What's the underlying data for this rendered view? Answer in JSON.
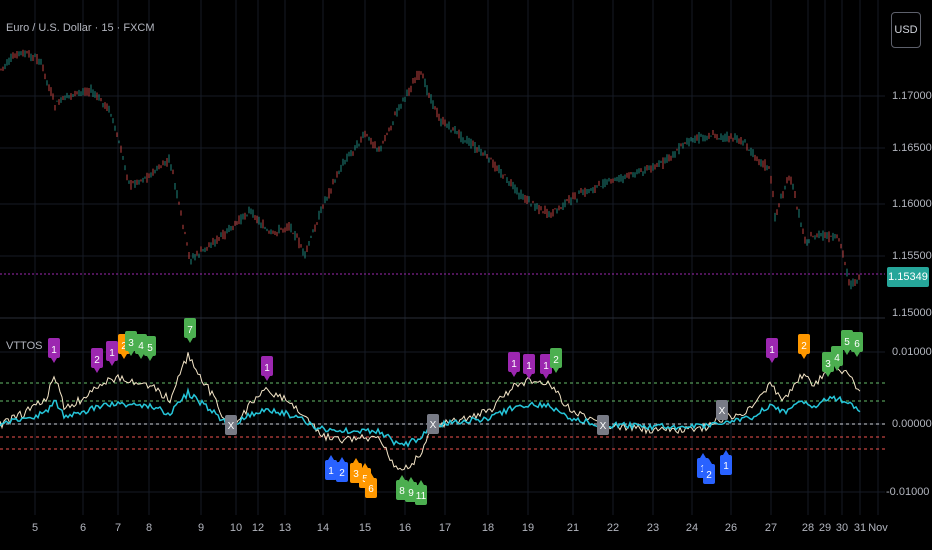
{
  "header": {
    "symbol_title": "Euro / U.S. Dollar · 15 · FXCM"
  },
  "currency_button": {
    "label": "USD"
  },
  "price_axis": {
    "labels": [
      "1.17000",
      "1.16500",
      "1.16000",
      "1.15500",
      "1.15000"
    ],
    "current_price": "1.15349"
  },
  "indicator": {
    "name": "VTTOS",
    "axis_labels": [
      "0.01000",
      "0.00000",
      "-0.01000"
    ]
  },
  "time_axis": {
    "labels": [
      "5",
      "6",
      "7",
      "8",
      "9",
      "10",
      "12",
      "13",
      "14",
      "15",
      "16",
      "17",
      "18",
      "19",
      "21",
      "22",
      "23",
      "24",
      "26",
      "27",
      "28",
      "29",
      "30",
      "31",
      "Nov"
    ]
  },
  "colors": {
    "background": "#000000",
    "up_candle": "#26a69a",
    "down_candle": "#ef5350",
    "price_line": "#9c27b0",
    "cyan_line": "#26c6da",
    "beige_line": "#f5e6c8",
    "upper_bands": "#66bb6a",
    "lower_bands": "#ef5350",
    "purple_label": "#9c27b0",
    "orange_label": "#ff9800",
    "green_label": "#4caf50",
    "blue_label": "#2962ff",
    "gray_label": "#787b86"
  },
  "markers": {
    "top": [
      {
        "text": "1",
        "color": "purple"
      },
      {
        "text": "2",
        "color": "purple"
      },
      {
        "text": "1",
        "color": "purple"
      },
      {
        "text": "2",
        "color": "orange"
      },
      {
        "text": "3",
        "color": "green"
      },
      {
        "text": "4",
        "color": "green"
      },
      {
        "text": "5",
        "color": "green"
      },
      {
        "text": "7",
        "color": "green"
      },
      {
        "text": "1",
        "color": "purple"
      },
      {
        "text": "1",
        "color": "purple"
      },
      {
        "text": "1",
        "color": "purple"
      },
      {
        "text": "1",
        "color": "purple"
      },
      {
        "text": "2",
        "color": "green"
      },
      {
        "text": "1",
        "color": "purple"
      },
      {
        "text": "2",
        "color": "orange"
      },
      {
        "text": "3",
        "color": "green"
      },
      {
        "text": "4",
        "color": "green"
      },
      {
        "text": "5",
        "color": "green"
      },
      {
        "text": "6",
        "color": "green"
      }
    ],
    "bottom": [
      {
        "text": "1",
        "color": "blue"
      },
      {
        "text": "2",
        "color": "blue"
      },
      {
        "text": "3",
        "color": "orange"
      },
      {
        "text": "5",
        "color": "orange"
      },
      {
        "text": "6",
        "color": "orange"
      },
      {
        "text": "8",
        "color": "green"
      },
      {
        "text": "9",
        "color": "green"
      },
      {
        "text": "11",
        "color": "green"
      },
      {
        "text": "1",
        "color": "blue"
      },
      {
        "text": "2",
        "color": "blue"
      },
      {
        "text": "1",
        "color": "blue"
      }
    ],
    "exit": [
      {
        "text": "X"
      },
      {
        "text": "X"
      },
      {
        "text": "X"
      },
      {
        "text": "X"
      }
    ]
  }
}
